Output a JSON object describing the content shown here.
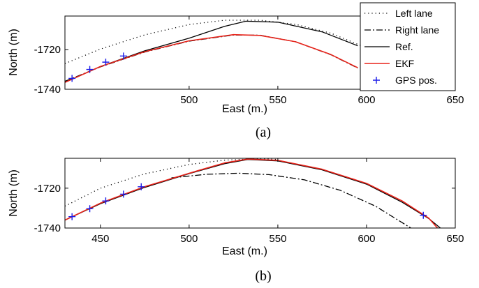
{
  "chart_data": [
    {
      "type": "line",
      "panel": "(a)",
      "xlabel": "East (m.)",
      "ylabel": "North (m)",
      "xlim": [
        430,
        650
      ],
      "ylim": [
        -1740,
        -1703
      ],
      "xticks": [
        500,
        550,
        600,
        650
      ],
      "yticks": [
        -1720,
        -1740
      ],
      "xtick_labels": [
        "500",
        "550",
        "600",
        "650"
      ],
      "ytick_labels": [
        "-1720",
        "-1740"
      ],
      "legend": {
        "position": "top-right",
        "entries": [
          {
            "label": "Left lane",
            "style": "dotted",
            "color": "#000000"
          },
          {
            "label": "Right lane",
            "style": "dashdot",
            "color": "#000000"
          },
          {
            "label": "Ref.",
            "style": "solid",
            "color": "#000000"
          },
          {
            "label": "EKF",
            "style": "solid",
            "color": "#e8231a"
          },
          {
            "label": "GPS pos.",
            "style": "marker-plus",
            "color": "#1c1ce8"
          }
        ]
      },
      "series": [
        {
          "name": "Left lane",
          "style": "dotted",
          "color": "#000000",
          "x": [
            430,
            450,
            475,
            500,
            520,
            540,
            560,
            580,
            600,
            615
          ],
          "y": [
            -1727,
            -1719.7,
            -1712.5,
            -1707.3,
            -1705.1,
            -1705.1,
            -1707.2,
            -1711.7,
            -1719.1,
            -1727.3
          ]
        },
        {
          "name": "Right lane",
          "style": "dashdot",
          "color": "#000000",
          "x": [
            430,
            450,
            475,
            500,
            525,
            540,
            560,
            580,
            595
          ],
          "y": [
            -1736,
            -1728.7,
            -1721.2,
            -1715.7,
            -1712.6,
            -1712.7,
            -1716,
            -1722.6,
            -1729.3
          ]
        },
        {
          "name": "Ref.",
          "style": "solid",
          "color": "#000000",
          "x": [
            430,
            450,
            475,
            500,
            520,
            532,
            550,
            575,
            595
          ],
          "y": [
            -1736.5,
            -1728.5,
            -1720.6,
            -1714.2,
            -1708.2,
            -1705.6,
            -1706.1,
            -1711,
            -1718
          ]
        },
        {
          "name": "EKF",
          "style": "solid",
          "color": "#e8231a",
          "x": [
            430,
            450,
            475,
            500,
            525,
            540,
            560,
            580,
            595
          ],
          "y": [
            -1736.5,
            -1728.5,
            -1721,
            -1715.5,
            -1712.4,
            -1712.8,
            -1716,
            -1722.5,
            -1729.1
          ]
        },
        {
          "name": "GPS pos.",
          "style": "marker-plus",
          "color": "#1c1ce8",
          "x": [
            434,
            444,
            453,
            463
          ],
          "y": [
            -1734.5,
            -1730,
            -1726.3,
            -1723.2
          ]
        }
      ]
    },
    {
      "type": "line",
      "panel": "(b)",
      "xlabel": "East (m.)",
      "ylabel": "North (m)",
      "xlim": [
        430,
        650
      ],
      "ylim": [
        -1740,
        -1705
      ],
      "xticks": [
        450,
        500,
        550,
        600,
        650
      ],
      "yticks": [
        -1720,
        -1740
      ],
      "xtick_labels": [
        "450",
        "500",
        "550",
        "600",
        "650"
      ],
      "ytick_labels": [
        "-1720",
        "-1740"
      ],
      "series": [
        {
          "name": "Left lane",
          "style": "dotted",
          "color": "#000000",
          "x": [
            430,
            450,
            475,
            500,
            520,
            540,
            550
          ],
          "y": [
            -1729,
            -1720,
            -1712.8,
            -1708.1,
            -1705.9,
            -1705.2,
            -1705.6
          ]
        },
        {
          "name": "Right lane",
          "style": "dashdot",
          "color": "#000000",
          "x": [
            490,
            510,
            528,
            545,
            565,
            585,
            605,
            625
          ],
          "y": [
            -1714.8,
            -1713,
            -1712.5,
            -1713.2,
            -1715.8,
            -1721,
            -1729,
            -1740
          ]
        },
        {
          "name": "Ref.",
          "style": "solid",
          "color": "#000000",
          "x": [
            430,
            450,
            475,
            500,
            520,
            533,
            550,
            575,
            600,
            620,
            635,
            643
          ],
          "y": [
            -1736,
            -1727.8,
            -1719.6,
            -1712.7,
            -1707.7,
            -1705.6,
            -1706.3,
            -1710.8,
            -1718,
            -1727,
            -1735.2,
            -1741
          ]
        },
        {
          "name": "EKF",
          "style": "solid",
          "color": "#e8231a",
          "x": [
            430,
            450,
            475,
            490,
            505,
            520,
            533,
            550,
            575,
            600,
            620,
            635,
            641
          ],
          "y": [
            -1736,
            -1727.5,
            -1719.2,
            -1715.2,
            -1711.2,
            -1707.3,
            -1705.4,
            -1706,
            -1710.5,
            -1717.6,
            -1726.4,
            -1735,
            -1741
          ]
        },
        {
          "name": "GPS pos.",
          "style": "marker-plus",
          "color": "#1c1ce8",
          "x": [
            434,
            444,
            453,
            463,
            473,
            632
          ],
          "y": [
            -1734.3,
            -1730.3,
            -1726.4,
            -1723,
            -1719.3,
            -1733.6
          ]
        }
      ]
    }
  ]
}
